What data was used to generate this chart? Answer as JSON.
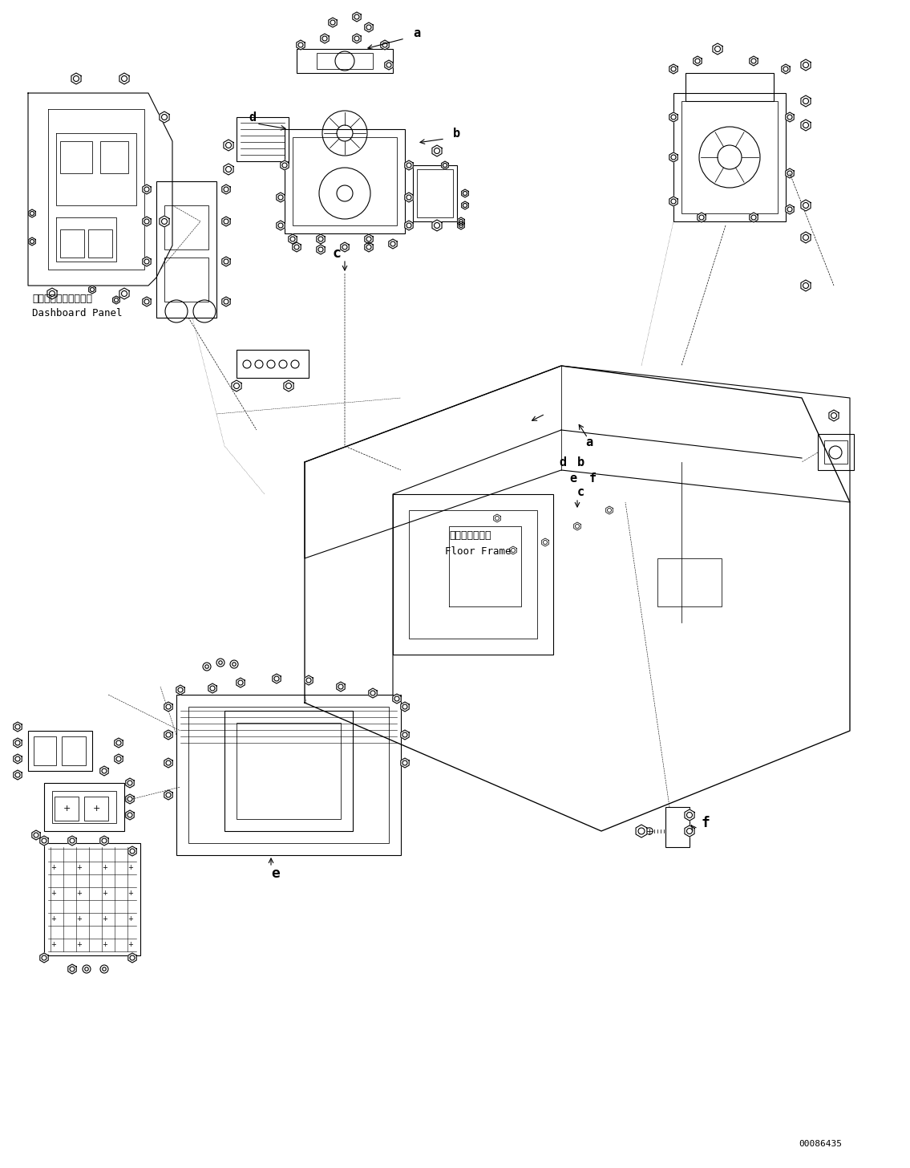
{
  "figure_width": 11.35,
  "figure_height": 14.56,
  "dpi": 100,
  "background_color": "#ffffff",
  "part_number": "00086435",
  "labels": {
    "dashboard_jp": "ダッシュボードパネル",
    "dashboard_en": "Dashboard Panel",
    "floor_frame_jp": "フロアフレーム",
    "floor_frame_en": "Floor Frame",
    "label_a": "a",
    "label_b": "b",
    "label_c": "c",
    "label_d": "d",
    "label_e": "e",
    "label_f": "f"
  },
  "line_color": "#000000",
  "line_width": 0.8,
  "font_size_label": 11,
  "font_size_callout": 10,
  "font_size_partno": 8,
  "font_size_caption": 9
}
